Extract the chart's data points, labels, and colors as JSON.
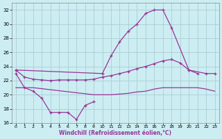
{
  "background_color": "#cceef2",
  "grid_color": "#aaccd4",
  "line_color": "#993399",
  "xlabel": "Windchill (Refroidissement éolien,°C)",
  "ylim": [
    16,
    33
  ],
  "xlim": [
    -0.5,
    23.5
  ],
  "yticks": [
    16,
    18,
    20,
    22,
    24,
    26,
    28,
    30,
    32
  ],
  "xticks": [
    0,
    1,
    2,
    3,
    4,
    5,
    6,
    7,
    8,
    9,
    10,
    11,
    12,
    13,
    14,
    15,
    16,
    17,
    18,
    19,
    20,
    21,
    22,
    23
  ],
  "top_line_x": [
    0,
    10,
    11,
    12,
    13,
    14,
    15,
    16,
    17,
    18,
    20,
    22,
    23
  ],
  "top_line_y": [
    23.5,
    23.0,
    25.5,
    27.5,
    29.0,
    30.0,
    31.5,
    32.0,
    32.0,
    29.5,
    23.5,
    23.0,
    23.0
  ],
  "mid_line_x": [
    0,
    1,
    2,
    3,
    4,
    5,
    6,
    7,
    8,
    9,
    10,
    11,
    12,
    13,
    14,
    15,
    16,
    17,
    18,
    19,
    20,
    21
  ],
  "mid_line_y": [
    23.5,
    22.5,
    22.2,
    22.1,
    22.0,
    22.1,
    22.1,
    22.1,
    22.1,
    22.2,
    22.5,
    22.7,
    23.0,
    23.3,
    23.7,
    24.0,
    24.4,
    24.8,
    25.0,
    24.5,
    23.5,
    23.0
  ],
  "bot_line_x": [
    0,
    1,
    2,
    9,
    10,
    11,
    12,
    13,
    14,
    15,
    16,
    17,
    18,
    19,
    20,
    21,
    22,
    23
  ],
  "bot_line_y": [
    21.0,
    21.0,
    21.0,
    20.0,
    20.0,
    20.0,
    20.1,
    20.2,
    20.4,
    20.5,
    20.8,
    21.0,
    21.0,
    21.0,
    21.0,
    21.0,
    20.8,
    20.5
  ],
  "spk_line_x": [
    0,
    1,
    2,
    3,
    4,
    5,
    6,
    7,
    8,
    9
  ],
  "spk_line_y": [
    23.0,
    21.0,
    20.5,
    19.5,
    17.5,
    17.5,
    17.5,
    16.5,
    18.5,
    19.0
  ]
}
